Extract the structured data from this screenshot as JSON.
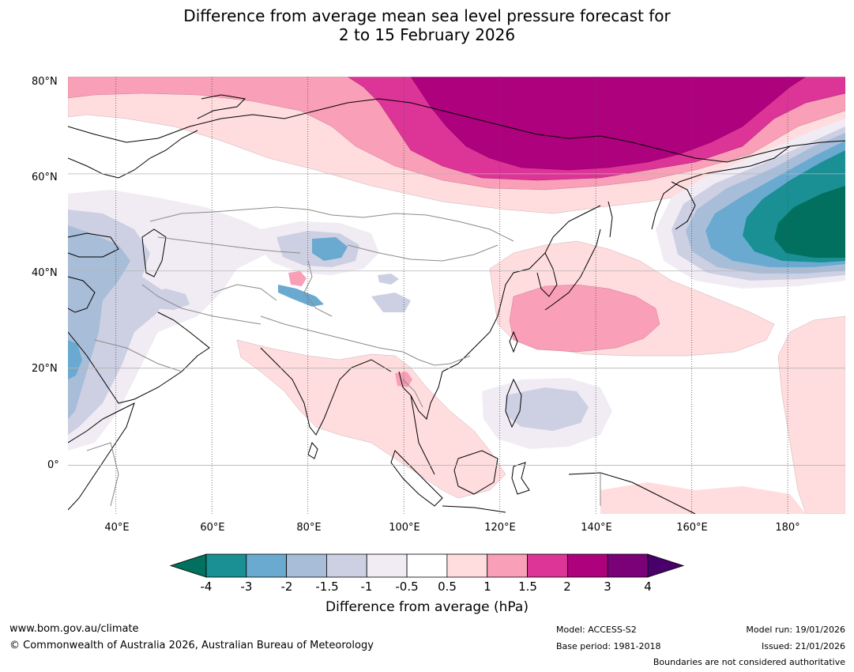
{
  "title": {
    "line1": "Difference from average mean sea level pressure forecast for",
    "line2": "2 to 15 February 2026"
  },
  "map": {
    "lat_labels": [
      "80°N",
      "60°N",
      "40°N",
      "20°N",
      "0°"
    ],
    "lat_values": [
      80,
      60,
      40,
      20,
      0
    ],
    "lon_labels": [
      "40°E",
      "60°E",
      "80°E",
      "100°E",
      "120°E",
      "140°E",
      "160°E",
      "180°"
    ],
    "lon_values": [
      40,
      60,
      80,
      100,
      120,
      140,
      160,
      180
    ],
    "extent": {
      "lon_min": 30,
      "lon_max": 192,
      "lat_min": -10,
      "lat_max": 80
    }
  },
  "colorbar": {
    "ticks": [
      "-4",
      "-3",
      "-2",
      "-1.5",
      "-1",
      "-0.5",
      "0.5",
      "1",
      "1.5",
      "2",
      "3",
      "4"
    ],
    "colors": [
      "#1a8f94",
      "#6aaad0",
      "#a8bdd8",
      "#cdcfe3",
      "#f1ecf4",
      "#ffffff",
      "#ffdddf",
      "#f99fb7",
      "#dd3497",
      "#ae017e",
      "#7a0177"
    ],
    "under_color": "#01705e",
    "over_color": "#49006a",
    "label": "Difference from average (hPa)"
  },
  "footer": {
    "website": "www.bom.gov.au/climate",
    "copyright": "© Commonwealth of Australia 2026, Australian Bureau of Meteorology",
    "model": "Model: ACCESS-S2",
    "base_period": "Base period: 1981-2018",
    "model_run": "Model run: 19/01/2026",
    "issued": "Issued: 21/01/2026",
    "boundaries": "Boundaries are not considered authoritative"
  }
}
